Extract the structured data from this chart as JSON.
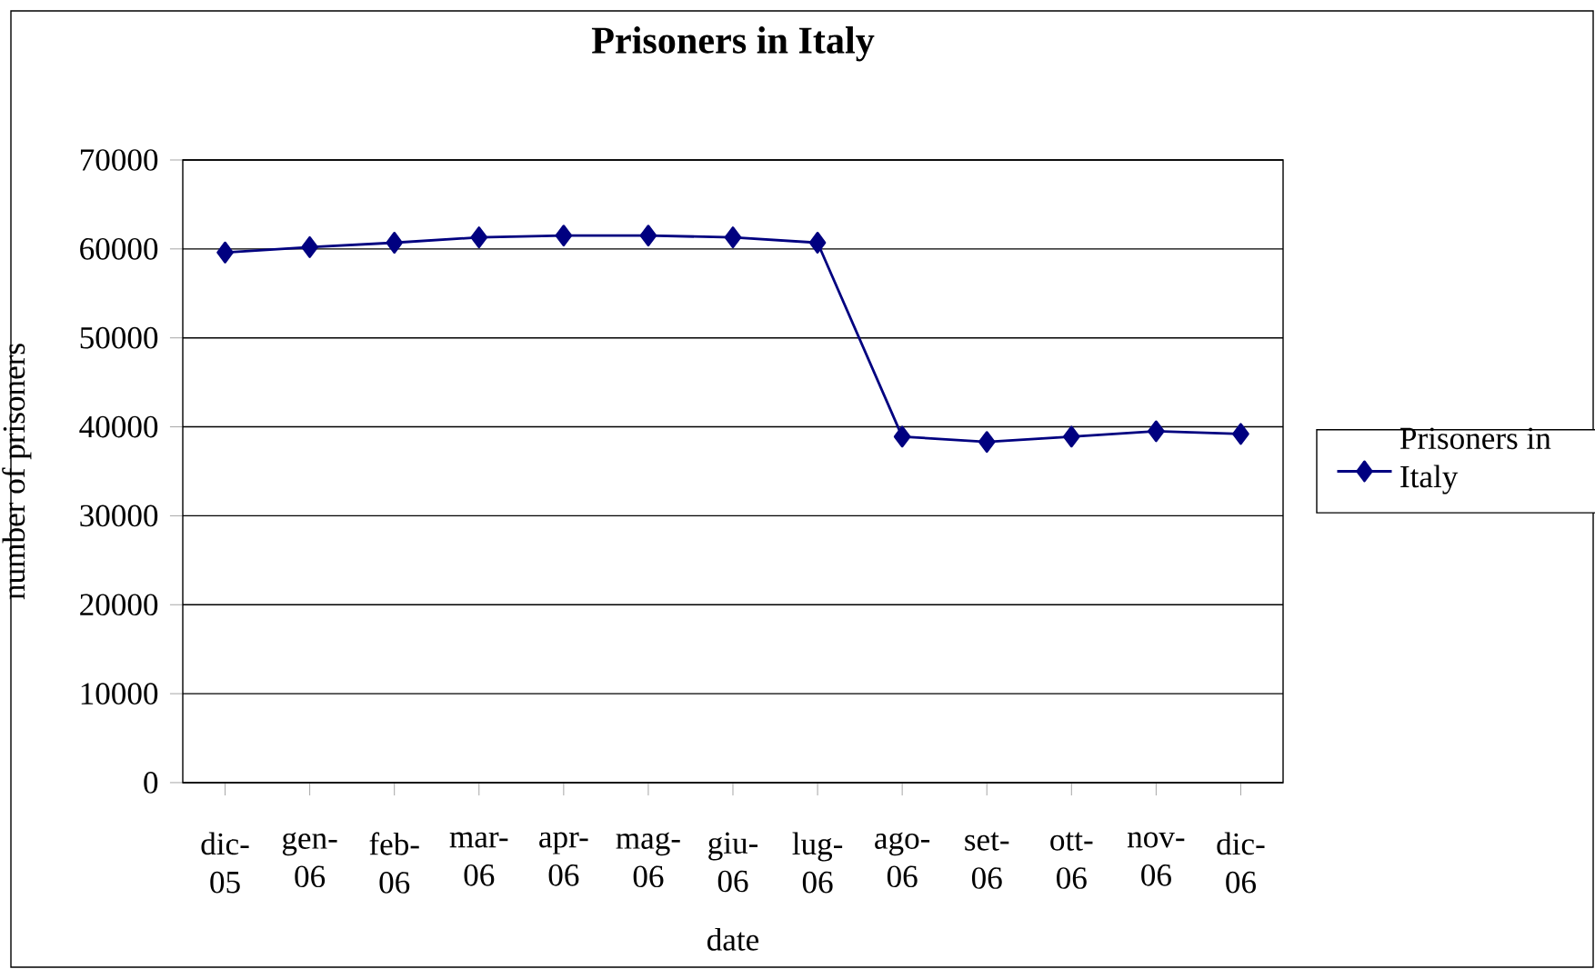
{
  "chart_data": {
    "type": "line",
    "title": "Prisoners in Italy",
    "xlabel": "date",
    "ylabel": "number of prisoners",
    "categories": [
      "dic- 05",
      "gen- 06",
      "feb- 06",
      "mar- 06",
      "apr- 06",
      "mag- 06",
      "giu- 06",
      "lug- 06",
      "ago- 06",
      "set- 06",
      "ott- 06",
      "nov- 06",
      "dic- 06"
    ],
    "series": [
      {
        "name": "Prisoners in Italy",
        "color": "#000080",
        "values": [
          59600,
          60200,
          60700,
          61300,
          61500,
          61500,
          61300,
          60700,
          38900,
          38300,
          38900,
          39500,
          39200
        ]
      }
    ],
    "ylim": [
      0,
      70000
    ],
    "yticks": [
      0,
      10000,
      20000,
      30000,
      40000,
      50000,
      60000,
      70000
    ],
    "grid": "y",
    "legend": "right",
    "marker": "diamond",
    "line_style": "solid"
  }
}
